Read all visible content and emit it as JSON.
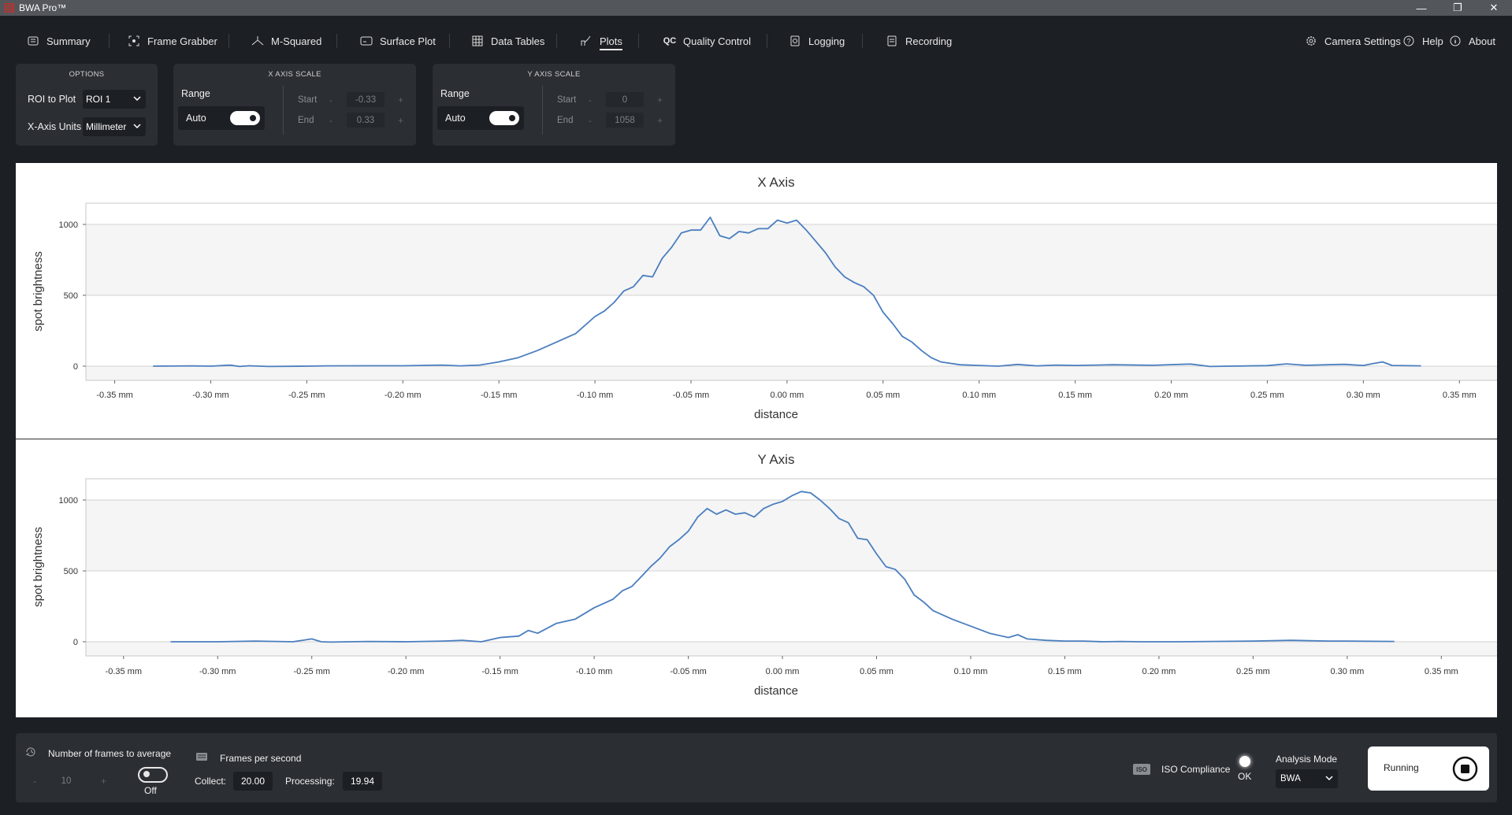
{
  "app": {
    "title": "BWA Pro™"
  },
  "window_controls": {
    "minimize": "—",
    "restore": "❐",
    "close": "✕"
  },
  "nav": {
    "items": [
      {
        "label": "Summary",
        "icon": "summary-icon"
      },
      {
        "label": "Frame Grabber",
        "icon": "frame-grabber-icon"
      },
      {
        "label": "M-Squared",
        "icon": "m-squared-icon"
      },
      {
        "label": "Surface Plot",
        "icon": "surface-plot-icon"
      },
      {
        "label": "Data Tables",
        "icon": "data-tables-icon"
      },
      {
        "label": "Plots",
        "icon": "plots-icon",
        "active": true
      },
      {
        "label": "Quality Control",
        "icon": "quality-control-icon"
      },
      {
        "label": "Logging",
        "icon": "logging-icon"
      },
      {
        "label": "Recording",
        "icon": "recording-icon"
      }
    ],
    "right": [
      {
        "label": "Camera Settings",
        "icon": "gear-icon"
      },
      {
        "label": "Help",
        "icon": "help-icon"
      },
      {
        "label": "About",
        "icon": "info-icon"
      }
    ]
  },
  "options": {
    "title": "OPTIONS",
    "roi_label": "ROI to Plot",
    "roi_value": "ROI 1",
    "units_label": "X-Axis Units",
    "units_value": "Millimeter"
  },
  "x_axis_scale": {
    "title": "X AXIS SCALE",
    "range_label": "Range",
    "auto_label": "Auto",
    "auto_on": true,
    "start_label": "Start",
    "start_value": "-0.33",
    "end_label": "End",
    "end_value": "0.33",
    "minus": "-",
    "plus": "+"
  },
  "y_axis_scale": {
    "title": "Y AXIS SCALE",
    "range_label": "Range",
    "auto_label": "Auto",
    "auto_on": true,
    "start_label": "Start",
    "start_value": "0",
    "end_label": "End",
    "end_value": "1058",
    "minus": "-",
    "plus": "+"
  },
  "chart_data": [
    {
      "type": "line",
      "title": "X Axis",
      "xlabel": "distance",
      "ylabel": "spot brightness",
      "xlim": [
        -0.365,
        0.37
      ],
      "ylim": [
        -100,
        1150
      ],
      "yticks": [
        0,
        500,
        1000
      ],
      "ytick_labels": [
        "0",
        "500",
        "1000"
      ],
      "xticks": [
        -0.35,
        -0.3,
        -0.25,
        -0.2,
        -0.15,
        -0.1,
        -0.05,
        0.0,
        0.05,
        0.1,
        0.15,
        0.2,
        0.25,
        0.3,
        0.35
      ],
      "xtick_labels": [
        "-0.35 mm",
        "-0.30 mm",
        "-0.25 mm",
        "-0.20 mm",
        "-0.15 mm",
        "-0.10 mm",
        "-0.05 mm",
        "0.00 mm",
        "0.05 mm",
        "0.10 mm",
        "0.15 mm",
        "0.20 mm",
        "0.25 mm",
        "0.30 mm",
        "0.35 mm"
      ],
      "grid_bands": true,
      "x": [
        -0.33,
        -0.31,
        -0.3,
        -0.29,
        -0.285,
        -0.28,
        -0.27,
        -0.25,
        -0.24,
        -0.22,
        -0.2,
        -0.18,
        -0.17,
        -0.16,
        -0.15,
        -0.14,
        -0.13,
        -0.12,
        -0.11,
        -0.1,
        -0.095,
        -0.09,
        -0.085,
        -0.08,
        -0.075,
        -0.07,
        -0.065,
        -0.06,
        -0.055,
        -0.05,
        -0.045,
        -0.04,
        -0.035,
        -0.03,
        -0.025,
        -0.02,
        -0.015,
        -0.01,
        -0.005,
        0.0,
        0.005,
        0.01,
        0.015,
        0.02,
        0.025,
        0.03,
        0.035,
        0.04,
        0.045,
        0.05,
        0.055,
        0.06,
        0.065,
        0.07,
        0.075,
        0.08,
        0.09,
        0.1,
        0.11,
        0.12,
        0.13,
        0.14,
        0.15,
        0.17,
        0.19,
        0.21,
        0.22,
        0.25,
        0.26,
        0.27,
        0.29,
        0.3,
        0.305,
        0.31,
        0.315,
        0.33
      ],
      "y": [
        0,
        2,
        0,
        7,
        -2,
        3,
        -2,
        0,
        2,
        3,
        3,
        8,
        2,
        8,
        30,
        60,
        110,
        170,
        230,
        350,
        390,
        450,
        530,
        560,
        640,
        630,
        760,
        840,
        940,
        960,
        960,
        1050,
        920,
        900,
        950,
        940,
        970,
        970,
        1030,
        1010,
        1030,
        960,
        880,
        800,
        700,
        630,
        590,
        560,
        500,
        380,
        300,
        210,
        170,
        110,
        60,
        30,
        10,
        5,
        0,
        12,
        2,
        8,
        5,
        10,
        6,
        15,
        -2,
        4,
        16,
        6,
        13,
        5,
        18,
        30,
        5,
        2
      ]
    },
    {
      "type": "line",
      "title": "Y Axis",
      "xlabel": "distance",
      "ylabel": "spot brightness",
      "xlim": [
        -0.37,
        0.38
      ],
      "ylim": [
        -100,
        1150
      ],
      "yticks": [
        0,
        500,
        1000
      ],
      "ytick_labels": [
        "0",
        "500",
        "1000"
      ],
      "xticks": [
        -0.35,
        -0.3,
        -0.25,
        -0.2,
        -0.15,
        -0.1,
        -0.05,
        0.0,
        0.05,
        0.1,
        0.15,
        0.2,
        0.25,
        0.3,
        0.35
      ],
      "xtick_labels": [
        "-0.35 mm",
        "-0.30 mm",
        "-0.25 mm",
        "-0.20 mm",
        "-0.15 mm",
        "-0.10 mm",
        "-0.05 mm",
        "0.00 mm",
        "0.05 mm",
        "0.10 mm",
        "0.15 mm",
        "0.20 mm",
        "0.25 mm",
        "0.30 mm",
        "0.35 mm"
      ],
      "grid_bands": true,
      "x": [
        -0.325,
        -0.3,
        -0.28,
        -0.26,
        -0.25,
        -0.245,
        -0.24,
        -0.22,
        -0.2,
        -0.18,
        -0.17,
        -0.16,
        -0.15,
        -0.14,
        -0.135,
        -0.13,
        -0.12,
        -0.11,
        -0.1,
        -0.09,
        -0.085,
        -0.08,
        -0.075,
        -0.07,
        -0.065,
        -0.06,
        -0.055,
        -0.05,
        -0.045,
        -0.04,
        -0.035,
        -0.03,
        -0.025,
        -0.02,
        -0.015,
        -0.01,
        -0.005,
        0.0,
        0.005,
        0.01,
        0.015,
        0.02,
        0.025,
        0.03,
        0.035,
        0.04,
        0.045,
        0.05,
        0.055,
        0.06,
        0.065,
        0.07,
        0.075,
        0.08,
        0.09,
        0.1,
        0.11,
        0.12,
        0.125,
        0.13,
        0.14,
        0.15,
        0.16,
        0.17,
        0.18,
        0.19,
        0.21,
        0.25,
        0.27,
        0.29,
        0.3,
        0.325
      ],
      "y": [
        0,
        0,
        5,
        0,
        20,
        0,
        -2,
        2,
        0,
        5,
        10,
        0,
        30,
        40,
        80,
        60,
        130,
        160,
        240,
        300,
        360,
        390,
        460,
        530,
        590,
        670,
        720,
        780,
        880,
        940,
        900,
        930,
        900,
        910,
        880,
        940,
        970,
        990,
        1030,
        1060,
        1050,
        1000,
        940,
        870,
        840,
        730,
        720,
        620,
        530,
        510,
        440,
        330,
        280,
        220,
        160,
        110,
        60,
        30,
        50,
        20,
        10,
        5,
        5,
        0,
        2,
        0,
        0,
        5,
        10,
        5,
        5,
        2
      ]
    }
  ],
  "bottom": {
    "frames_avg_label": "Number of frames to average",
    "frames_avg_value": "10",
    "minus": "-",
    "plus": "+",
    "avg_toggle_label": "Off",
    "fps_label": "Frames per second",
    "collect_label": "Collect:",
    "collect_value": "20.00",
    "processing_label": "Processing:",
    "processing_value": "19.94",
    "iso_badge": "ISO",
    "iso_label": "ISO Compliance",
    "iso_status": "OK",
    "analysis_label": "Analysis Mode",
    "analysis_value": "BWA",
    "running_label": "Running"
  },
  "colors": {
    "accent_line": "#4a7ebf",
    "panel": "#2b2e33",
    "background": "#1c1f24"
  }
}
